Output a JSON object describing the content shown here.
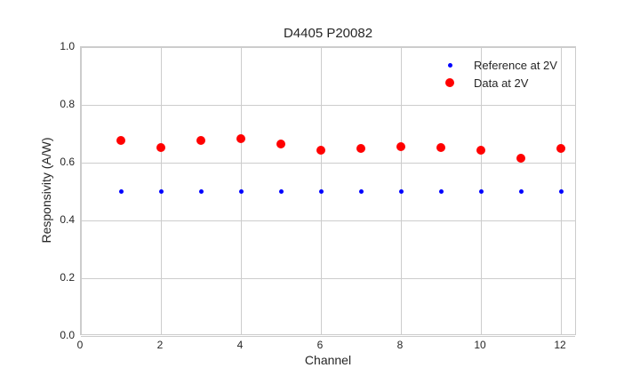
{
  "chart_data": {
    "type": "scatter",
    "title": "D4405 P20082",
    "xlabel": "Channel",
    "ylabel": "Responsivity (A/W)",
    "xlim": [
      0,
      12.4
    ],
    "ylim": [
      0.0,
      1.0
    ],
    "x_ticks": [
      0,
      2,
      4,
      6,
      8,
      10,
      12
    ],
    "x_tick_labels": [
      "0",
      "2",
      "4",
      "6",
      "8",
      "10",
      "12"
    ],
    "y_ticks": [
      0.0,
      0.2,
      0.4,
      0.6,
      0.8,
      1.0
    ],
    "y_tick_labels": [
      "0.0",
      "0.2",
      "0.4",
      "0.6",
      "0.8",
      "1.0"
    ],
    "grid": true,
    "legend_position": "upper right",
    "x": [
      1,
      2,
      3,
      4,
      5,
      6,
      7,
      8,
      9,
      10,
      11,
      12
    ],
    "series": [
      {
        "name": "Reference at 2V",
        "color": "#0000ff",
        "marker_size": 5,
        "values": [
          0.5,
          0.5,
          0.5,
          0.5,
          0.5,
          0.5,
          0.5,
          0.5,
          0.5,
          0.5,
          0.5,
          0.5
        ]
      },
      {
        "name": "Data at 2V",
        "color": "#ff0000",
        "marker_size": 10,
        "values": [
          0.676,
          0.651,
          0.676,
          0.682,
          0.665,
          0.643,
          0.648,
          0.655,
          0.651,
          0.642,
          0.614,
          0.648
        ]
      }
    ],
    "colors": {
      "grid": "#cccccc",
      "spine": "#cccccc",
      "text": "#262626",
      "background": "#ffffff"
    }
  }
}
